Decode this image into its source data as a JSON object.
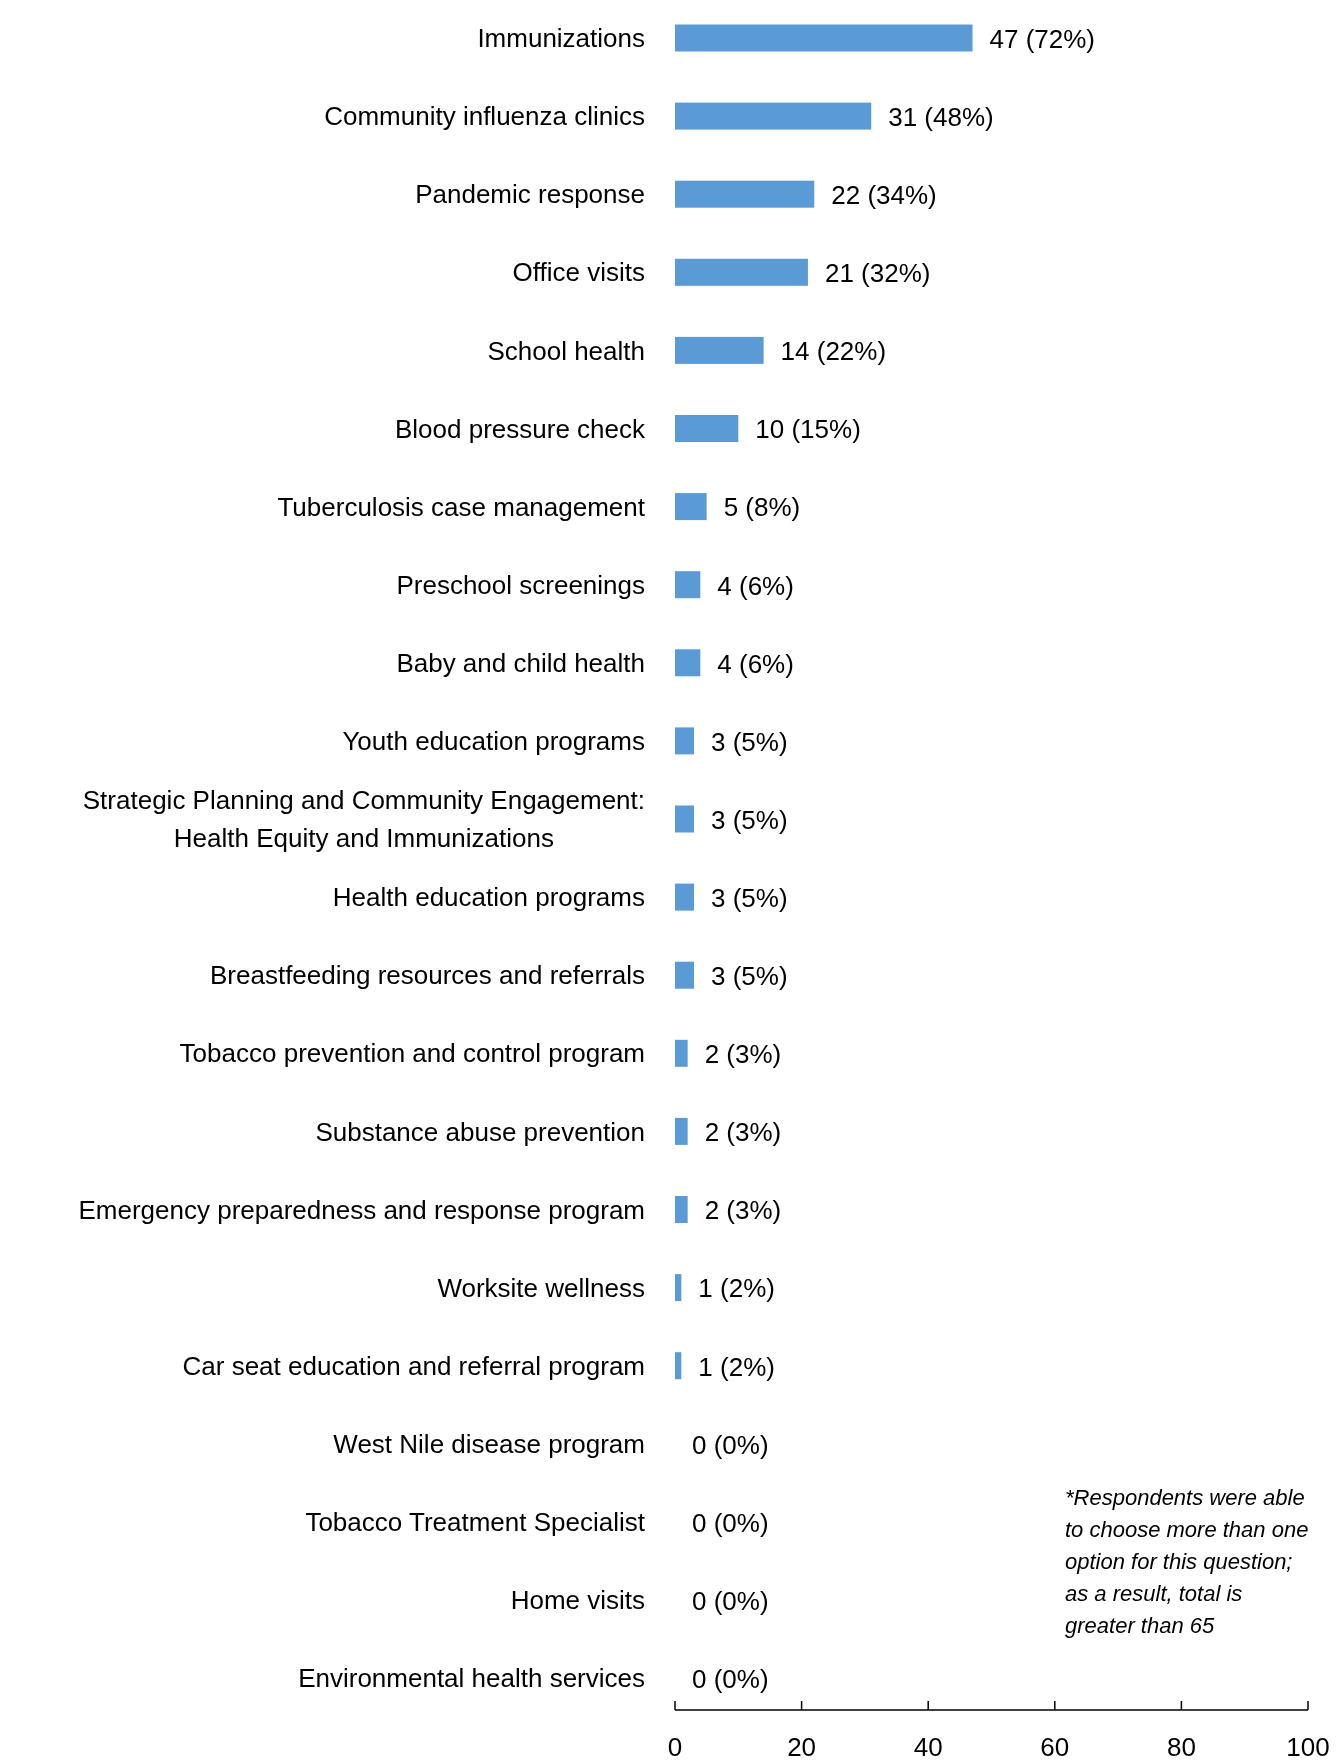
{
  "chart_data": {
    "type": "bar",
    "orientation": "horizontal",
    "categories": [
      "Immunizations",
      "Community influenza clinics",
      "Pandemic response",
      "Office visits",
      "School health",
      "Blood pressure check",
      "Tuberculosis case management",
      "Preschool screenings",
      "Baby and child health",
      "Youth education programs",
      "Strategic Planning and Community Engagement: Health Equity and Immunizations",
      "Health education programs",
      "Breastfeeding resources and referrals",
      "Tobacco prevention and control program",
      "Substance abuse prevention",
      "Emergency preparedness and response program",
      "Worksite wellness",
      "Car seat education and referral program",
      "West Nile disease program",
      "Tobacco Treatment Specialist",
      "Home visits",
      "Environmental health services"
    ],
    "values": [
      47,
      31,
      22,
      21,
      14,
      10,
      5,
      4,
      4,
      3,
      3,
      3,
      3,
      2,
      2,
      2,
      1,
      1,
      0,
      0,
      0,
      0
    ],
    "value_labels": [
      "47 (72%)",
      "31 (48%)",
      "22 (34%)",
      "21 (32%)",
      "14 (22%)",
      "10 (15%)",
      "5 (8%)",
      "4 (6%)",
      "4 (6%)",
      "3 (5%)",
      "3 (5%)",
      "3 (5%)",
      "3 (5%)",
      "2 (3%)",
      "2 (3%)",
      "2 (3%)",
      "1 (2%)",
      "1 (2%)",
      "0 (0%)",
      "0 (0%)",
      "0 (0%)",
      "0 (0%)"
    ],
    "color": "#5b9bd5",
    "xlim": [
      0,
      100
    ],
    "xticks": [
      0,
      20,
      40,
      60,
      80,
      100
    ],
    "grid": false,
    "annotations": [
      "*Respondents were able to choose more than one option for this question; as a result, total is greater than 65"
    ]
  }
}
